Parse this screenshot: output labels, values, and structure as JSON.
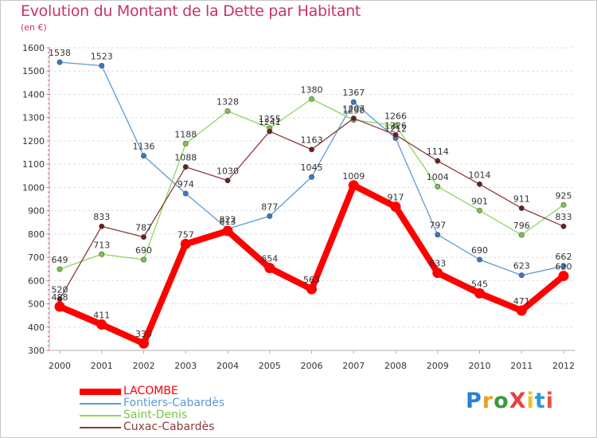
{
  "title": "Evolution du Montant de la Dette par Habitant",
  "subtitle": "(en €)",
  "logo": {
    "text": "ProXiti",
    "letter_colors": [
      "#2a7fd4",
      "#e8a020",
      "#3a9a3a",
      "#e84040",
      "#f0c020",
      "#2a9ad4",
      "#e85040"
    ]
  },
  "chart_data": {
    "type": "line",
    "title": "Evolution du Montant de la Dette par Habitant",
    "subtitle": "(en €)",
    "ylim": [
      300,
      1600
    ],
    "yticks": [
      300,
      400,
      500,
      600,
      700,
      800,
      900,
      1000,
      1100,
      1200,
      1300,
      1400,
      1500,
      1600
    ],
    "x": [
      "2000",
      "2001",
      "2002",
      "2003",
      "2004",
      "2005",
      "2006",
      "2007",
      "2008",
      "2009",
      "2010",
      "2011",
      "2012"
    ],
    "grid": "horizontal",
    "legend_position": "bottom-left",
    "series": [
      {
        "name": "Fontiers-Cabardès",
        "color": "#5b9bd5",
        "marker": "#3a78c0",
        "width": 1.3,
        "values": [
          1538,
          1523,
          1136,
          974,
          822,
          877,
          1045,
          1367,
          1212,
          797,
          690,
          623,
          662
        ]
      },
      {
        "name": "Saint-Denis",
        "color": "#8ed65a",
        "marker": "#7bc448",
        "width": 1.3,
        "values": [
          649,
          713,
          690,
          1188,
          1328,
          1255,
          1380,
          1290,
          1266,
          1004,
          901,
          796,
          925
        ]
      },
      {
        "name": "Cuxac-Cabardès",
        "color": "#8b3a3a",
        "marker": "#6b1e1e",
        "width": 1.3,
        "values": [
          520,
          833,
          787,
          1088,
          1030,
          1241,
          1163,
          1297,
          1226,
          1114,
          1014,
          911,
          833
        ]
      },
      {
        "name": "LACOMBE",
        "color": "#ff0000",
        "marker": "#ff0000",
        "width": 8,
        "values": [
          488,
          411,
          330,
          757,
          813,
          654,
          563,
          1009,
          917,
          633,
          545,
          471,
          620
        ]
      }
    ],
    "legend_order": [
      "LACOMBE",
      "Fontiers-Cabardès",
      "Saint-Denis",
      "Cuxac-Cabardès"
    ]
  }
}
